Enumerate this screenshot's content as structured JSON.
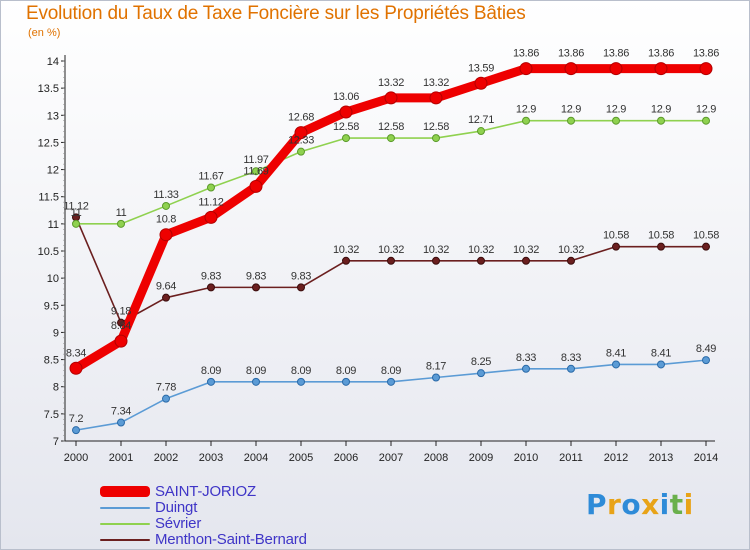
{
  "chart_data": {
    "type": "line",
    "title": "Evolution du Taux de Taxe Foncière sur les Propriétés Bâties",
    "ylabel": "(en %)",
    "xlabel": "",
    "ylim": [
      7,
      14
    ],
    "yticks": [
      "7",
      "7.5",
      "8",
      "8.5",
      "9",
      "9.5",
      "10",
      "10.5",
      "11",
      "11.5",
      "12",
      "12.5",
      "13",
      "13.5",
      "14"
    ],
    "categories": [
      "2000",
      "2001",
      "2002",
      "2003",
      "2004",
      "2005",
      "2006",
      "2007",
      "2008",
      "2009",
      "2010",
      "2011",
      "2012",
      "2013",
      "2014"
    ],
    "series": [
      {
        "name": "SAINT-JORIOZ",
        "color": "#ee0000",
        "values": [
          8.34,
          8.84,
          10.8,
          11.12,
          11.69,
          12.68,
          13.06,
          13.32,
          13.32,
          13.59,
          13.86,
          13.86,
          13.86,
          13.86,
          13.86
        ],
        "labels": [
          "8.34",
          "8.84",
          "10.8",
          "11.12",
          "11.69",
          "12.68",
          "13.06",
          "13.32",
          "13.32",
          "13.59",
          "13.86",
          "13.86",
          "13.86",
          "13.86",
          "13.86"
        ]
      },
      {
        "name": "Duingt",
        "color": "#5b9bd5",
        "values": [
          7.2,
          7.34,
          7.78,
          8.09,
          8.09,
          8.09,
          8.09,
          8.09,
          8.17,
          8.25,
          8.33,
          8.33,
          8.41,
          8.41,
          8.49
        ],
        "labels": [
          "7.2",
          "7.34",
          "7.78",
          "8.09",
          "8.09",
          "8.09",
          "8.09",
          "8.09",
          "8.17",
          "8.25",
          "8.33",
          "8.33",
          "8.41",
          "8.41",
          "8.49"
        ]
      },
      {
        "name": "Sévrier",
        "color": "#8fd14f",
        "values": [
          11,
          11,
          11.33,
          11.67,
          11.97,
          12.33,
          12.58,
          12.58,
          12.58,
          12.71,
          12.9,
          12.9,
          12.9,
          12.9,
          12.9
        ],
        "labels": [
          "11",
          "11",
          "11.33",
          "11.67",
          "11.97",
          "12.33",
          "12.58",
          "12.58",
          "12.58",
          "12.71",
          "12.9",
          "12.9",
          "12.9",
          "12.9",
          "12.9"
        ]
      },
      {
        "name": "Menthon-Saint-Bernard",
        "color": "#6b1f1f",
        "values": [
          11.12,
          9.18,
          9.64,
          9.83,
          9.83,
          9.83,
          10.32,
          10.32,
          10.32,
          10.32,
          10.32,
          10.32,
          10.58,
          10.58,
          10.58
        ],
        "labels": [
          "11.12",
          "9.18",
          "9.64",
          "9.83",
          "9.83",
          "9.83",
          "10.32",
          "10.32",
          "10.32",
          "10.32",
          "10.32",
          "10.32",
          "10.58",
          "10.58",
          "10.58"
        ]
      }
    ],
    "legend": [
      "SAINT-JORIOZ",
      "Duingt",
      "Sévrier",
      "Menthon-Saint-Bernard"
    ],
    "legend_position": "bottom-left",
    "grid": false
  },
  "branding": {
    "letters": [
      "P",
      "r",
      "o",
      "x",
      "i",
      "t",
      "i"
    ],
    "colors": [
      "#2e8bd8",
      "#e8a317",
      "#2e8bd8",
      "#e8a317",
      "#2e8bd8",
      "#6ab04c",
      "#e8a317"
    ]
  }
}
